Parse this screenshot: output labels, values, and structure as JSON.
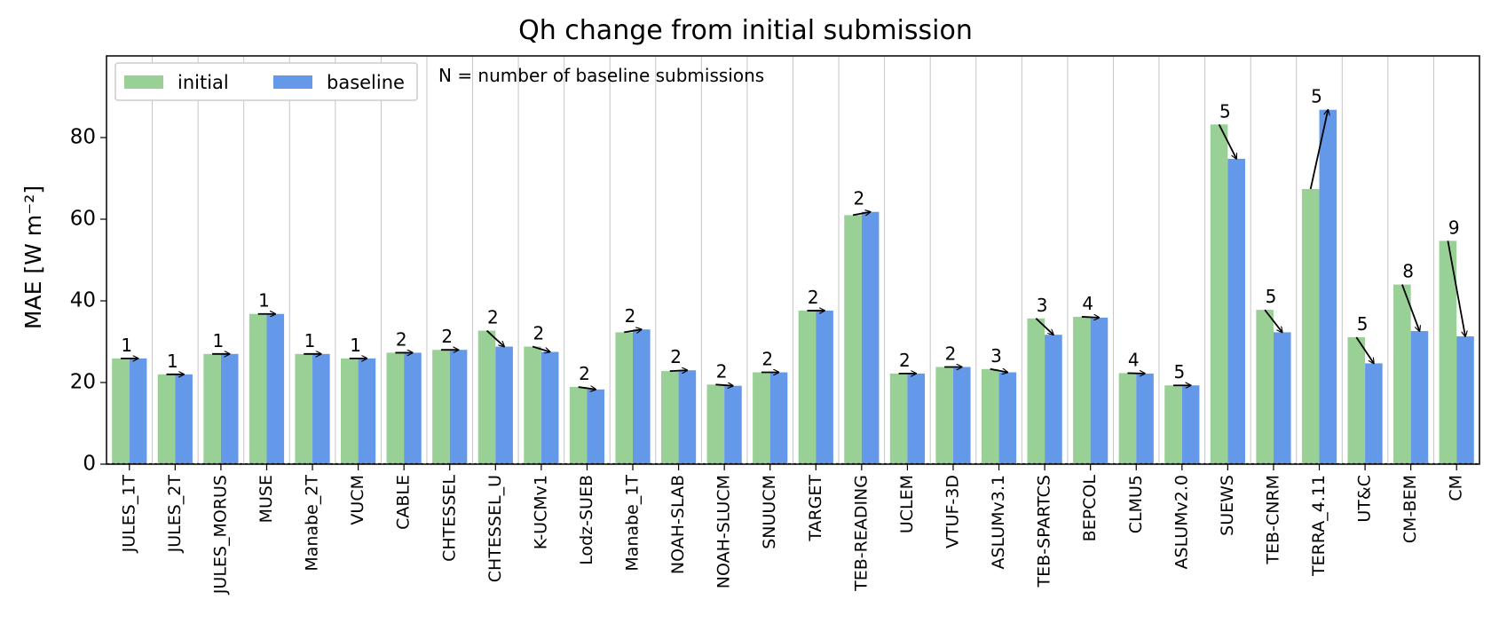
{
  "chart_data": {
    "type": "bar",
    "title": "Qh change from initial submission",
    "ylabel": "MAE [W m⁻²]",
    "xlabel": "",
    "ylim": [
      0,
      100
    ],
    "yticks": [
      0,
      20,
      40,
      60,
      80
    ],
    "grid": "vertical lines between categories",
    "legend_position": "top-left",
    "note": "N = number of baseline submissions",
    "categories": [
      "JULES_1T",
      "JULES_2T",
      "JULES_MORUS",
      "MUSE",
      "Manabe_2T",
      "VUCM",
      "CABLE",
      "CHTESSEL",
      "CHTESSEL_U",
      "K-UCMv1",
      "Lodz-SUEB",
      "Manabe_1T",
      "NOAH-SLAB",
      "NOAH-SLUCM",
      "SNUUCM",
      "TARGET",
      "TEB-READING",
      "UCLEM",
      "VTUF-3D",
      "ASLUMv3.1",
      "TEB-SPARTCS",
      "BEPCOL",
      "CLMU5",
      "ASLUMv2.0",
      "SUEWS",
      "TEB-CNRM",
      "TERRA_4.11",
      "UT&C",
      "CM-BEM",
      "CM"
    ],
    "series": [
      {
        "name": "initial",
        "color": "#98d095",
        "values": [
          25.9,
          22.0,
          27.0,
          36.8,
          27.0,
          25.9,
          27.3,
          28.0,
          32.7,
          28.8,
          18.9,
          32.3,
          22.8,
          19.5,
          22.5,
          37.6,
          61.0,
          22.2,
          23.8,
          23.3,
          35.7,
          36.1,
          22.3,
          19.3,
          83.2,
          37.8,
          67.4,
          31.1,
          44.0,
          54.7
        ]
      },
      {
        "name": "baseline",
        "color": "#6499e9",
        "values": [
          25.9,
          22.0,
          27.0,
          36.8,
          27.0,
          25.9,
          27.3,
          28.0,
          28.8,
          27.5,
          18.3,
          33.0,
          23.0,
          19.2,
          22.5,
          37.6,
          61.8,
          22.2,
          23.8,
          22.5,
          31.7,
          35.9,
          22.2,
          19.3,
          74.8,
          32.3,
          86.8,
          24.7,
          32.6,
          31.3
        ]
      }
    ],
    "n_baseline_submissions": [
      "1",
      "1",
      "1",
      "1",
      "1",
      "1",
      "2",
      "2",
      "2",
      "2",
      "2",
      "2",
      "2",
      "2",
      "2",
      "2",
      "2",
      "2",
      "2",
      "3",
      "3",
      "4",
      "4",
      "5",
      "5",
      "5",
      "5",
      "5",
      "8",
      "9"
    ]
  }
}
